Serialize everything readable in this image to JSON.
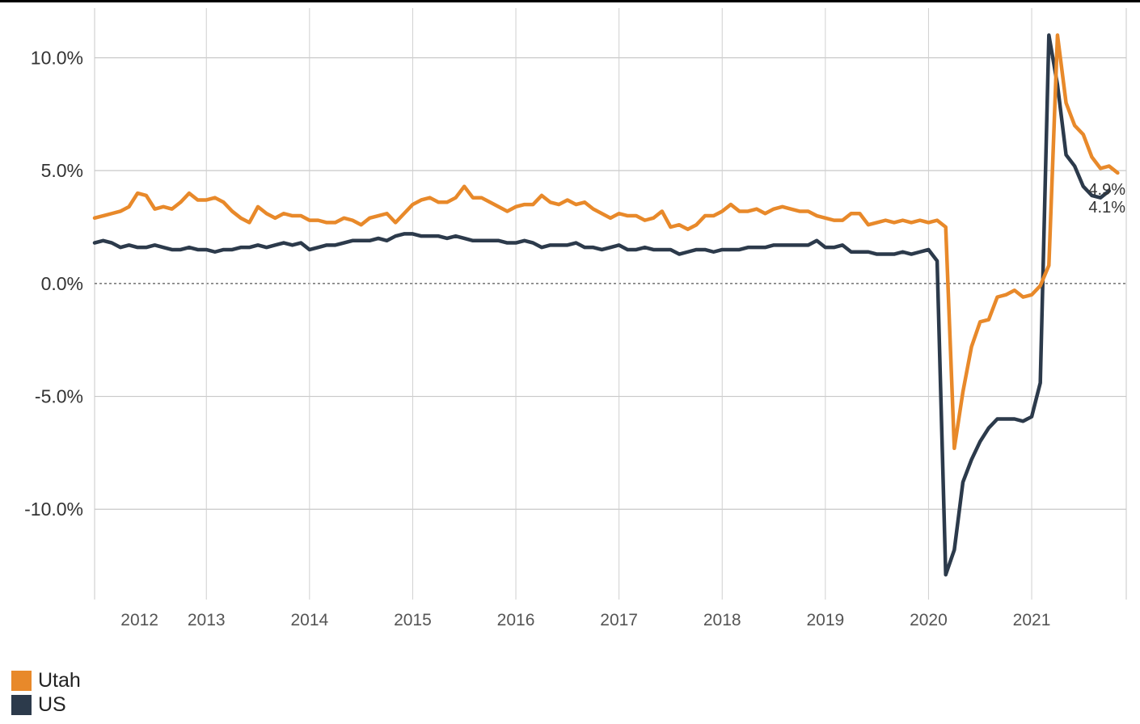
{
  "chart_data": {
    "type": "line",
    "title": "",
    "xlabel": "",
    "ylabel": "",
    "ylim": [
      -14.0,
      12.2
    ],
    "xlim": [
      "2011-12",
      "2021-12"
    ],
    "y_ticks": [
      10,
      5,
      0,
      -5,
      -10
    ],
    "y_tick_labels": [
      "10.0%",
      "5.0%",
      "0.0%",
      "-5.0%",
      "-10.0%"
    ],
    "x_ticks": [
      "2012",
      "2013",
      "2014",
      "2015",
      "2016",
      "2017",
      "2018",
      "2019",
      "2020",
      "2021"
    ],
    "grid": true,
    "zero_line": "dotted",
    "legend_position": "bottom-left",
    "series": [
      {
        "name": "Utah",
        "color": "#E8892A",
        "start": "2011-12",
        "frequency": "monthly",
        "end_label": "4.9%",
        "values": [
          2.9,
          3.0,
          3.1,
          3.2,
          3.4,
          4.0,
          3.9,
          3.3,
          3.4,
          3.3,
          3.6,
          4.0,
          3.7,
          3.7,
          3.8,
          3.6,
          3.2,
          2.9,
          2.7,
          3.4,
          3.1,
          2.9,
          3.1,
          3.0,
          3.0,
          2.8,
          2.8,
          2.7,
          2.7,
          2.9,
          2.8,
          2.6,
          2.9,
          3.0,
          3.1,
          2.7,
          3.1,
          3.5,
          3.7,
          3.8,
          3.6,
          3.6,
          3.8,
          4.3,
          3.8,
          3.8,
          3.6,
          3.4,
          3.2,
          3.4,
          3.5,
          3.5,
          3.9,
          3.6,
          3.5,
          3.7,
          3.5,
          3.6,
          3.3,
          3.1,
          2.9,
          3.1,
          3.0,
          3.0,
          2.8,
          2.9,
          3.2,
          2.5,
          2.6,
          2.4,
          2.6,
          3.0,
          3.0,
          3.2,
          3.5,
          3.2,
          3.2,
          3.3,
          3.1,
          3.3,
          3.4,
          3.3,
          3.2,
          3.2,
          3.0,
          2.9,
          2.8,
          2.8,
          3.1,
          3.1,
          2.6,
          2.7,
          2.8,
          2.7,
          2.8,
          2.7,
          2.8,
          2.7,
          2.8,
          2.5,
          -7.3,
          -4.8,
          -2.8,
          -1.7,
          -1.6,
          -0.6,
          -0.5,
          -0.3,
          -0.6,
          -0.5,
          -0.1,
          0.8,
          11.0,
          8.0,
          7.0,
          6.6,
          5.6,
          5.1,
          5.2,
          4.9
        ]
      },
      {
        "name": "US",
        "color": "#2C3A4B",
        "start": "2011-12",
        "frequency": "monthly",
        "end_label": "4.1%",
        "values": [
          1.8,
          1.9,
          1.8,
          1.6,
          1.7,
          1.6,
          1.6,
          1.7,
          1.6,
          1.5,
          1.5,
          1.6,
          1.5,
          1.5,
          1.4,
          1.5,
          1.5,
          1.6,
          1.6,
          1.7,
          1.6,
          1.7,
          1.8,
          1.7,
          1.8,
          1.5,
          1.6,
          1.7,
          1.7,
          1.8,
          1.9,
          1.9,
          1.9,
          2.0,
          1.9,
          2.1,
          2.2,
          2.2,
          2.1,
          2.1,
          2.1,
          2.0,
          2.1,
          2.0,
          1.9,
          1.9,
          1.9,
          1.9,
          1.8,
          1.8,
          1.9,
          1.8,
          1.6,
          1.7,
          1.7,
          1.7,
          1.8,
          1.6,
          1.6,
          1.5,
          1.6,
          1.7,
          1.5,
          1.5,
          1.6,
          1.5,
          1.5,
          1.5,
          1.3,
          1.4,
          1.5,
          1.5,
          1.4,
          1.5,
          1.5,
          1.5,
          1.6,
          1.6,
          1.6,
          1.7,
          1.7,
          1.7,
          1.7,
          1.7,
          1.9,
          1.6,
          1.6,
          1.7,
          1.4,
          1.4,
          1.4,
          1.3,
          1.3,
          1.3,
          1.4,
          1.3,
          1.4,
          1.5,
          1.0,
          -12.9,
          -11.8,
          -8.8,
          -7.8,
          -7.0,
          -6.4,
          -6.0,
          -6.0,
          -6.0,
          -6.1,
          -5.9,
          -4.4,
          11.0,
          8.8,
          5.7,
          5.2,
          4.3,
          3.9,
          3.8,
          4.1
        ]
      }
    ]
  }
}
